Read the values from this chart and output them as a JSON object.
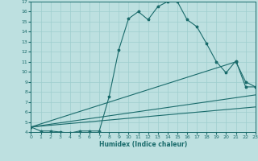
{
  "xlabel": "Humidex (Indice chaleur)",
  "bg_color": "#bde0e0",
  "grid_color": "#9ecece",
  "line_color": "#1a6b6b",
  "xlim": [
    0,
    23
  ],
  "ylim": [
    4,
    17
  ],
  "xticks": [
    0,
    1,
    2,
    3,
    4,
    5,
    6,
    7,
    8,
    9,
    10,
    11,
    12,
    13,
    14,
    15,
    16,
    17,
    18,
    19,
    20,
    21,
    22,
    23
  ],
  "yticks": [
    4,
    5,
    6,
    7,
    8,
    9,
    10,
    11,
    12,
    13,
    14,
    15,
    16,
    17
  ],
  "main_x": [
    0,
    1,
    2,
    3,
    4,
    5,
    6,
    7,
    8,
    9,
    10,
    11,
    12,
    13,
    14,
    15,
    16,
    17,
    18,
    19,
    20,
    21,
    22,
    23
  ],
  "main_y": [
    4.5,
    4.1,
    4.1,
    4.0,
    3.9,
    4.1,
    4.1,
    4.1,
    7.5,
    12.2,
    15.3,
    16.0,
    15.2,
    16.5,
    17.0,
    17.0,
    15.2,
    14.5,
    12.8,
    11.0,
    9.9,
    11.1,
    8.5,
    8.5
  ],
  "line1_x": [
    0,
    21,
    22,
    23
  ],
  "line1_y": [
    4.5,
    11.0,
    9.0,
    8.5
  ],
  "line2_x": [
    0,
    23
  ],
  "line2_y": [
    4.5,
    7.7
  ],
  "line3_x": [
    0,
    23
  ],
  "line3_y": [
    4.5,
    6.5
  ]
}
